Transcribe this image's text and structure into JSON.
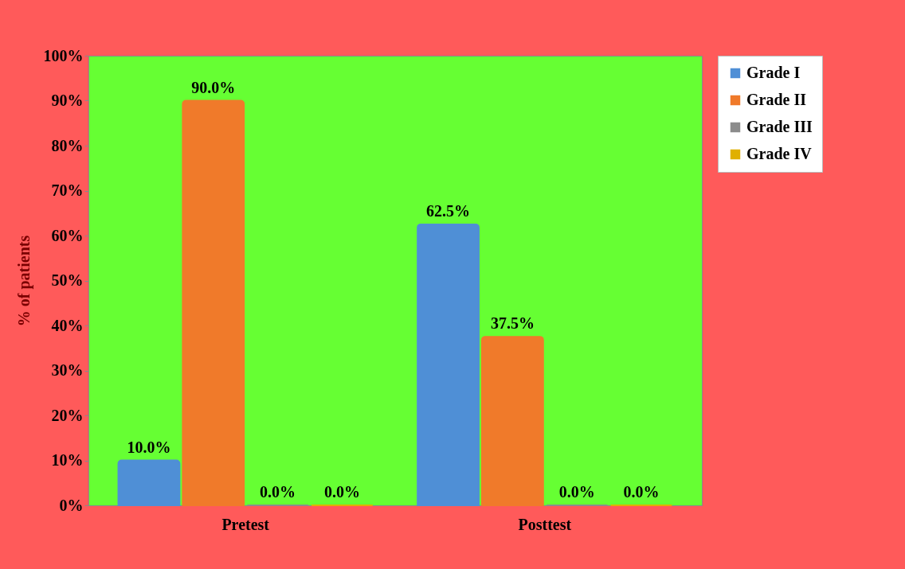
{
  "chart_data": {
    "type": "bar",
    "ylabel": "% of  patients",
    "categories": [
      "Pretest",
      "Posttest"
    ],
    "series": [
      {
        "name": "Grade I",
        "color": "#4f8fd6",
        "values": [
          10.0,
          62.5
        ],
        "value_labels": [
          "10.0%",
          "62.5%"
        ]
      },
      {
        "name": "Grade II",
        "color": "#f07a2a",
        "values": [
          90.0,
          37.5
        ],
        "value_labels": [
          "90.0%",
          "37.5%"
        ]
      },
      {
        "name": "Grade III",
        "color": "#8c8c8c",
        "values": [
          0.0,
          0.0
        ],
        "value_labels": [
          "0.0%",
          "0.0%"
        ]
      },
      {
        "name": "Grade IV",
        "color": "#e0b000",
        "values": [
          0.0,
          0.0
        ],
        "value_labels": [
          "0.0%",
          "0.0%"
        ]
      }
    ],
    "ylim": [
      0,
      100
    ],
    "yticks": [
      {
        "value": 0,
        "label": "0%"
      },
      {
        "value": 10,
        "label": "10%"
      },
      {
        "value": 20,
        "label": "20%"
      },
      {
        "value": 30,
        "label": "30%"
      },
      {
        "value": 40,
        "label": "40%"
      },
      {
        "value": 50,
        "label": "50%"
      },
      {
        "value": 60,
        "label": "60%"
      },
      {
        "value": 70,
        "label": "70%"
      },
      {
        "value": 80,
        "label": "80%"
      },
      {
        "value": 90,
        "label": "90%"
      },
      {
        "value": 100,
        "label": "100%"
      }
    ],
    "grid": false,
    "legend": "right"
  }
}
